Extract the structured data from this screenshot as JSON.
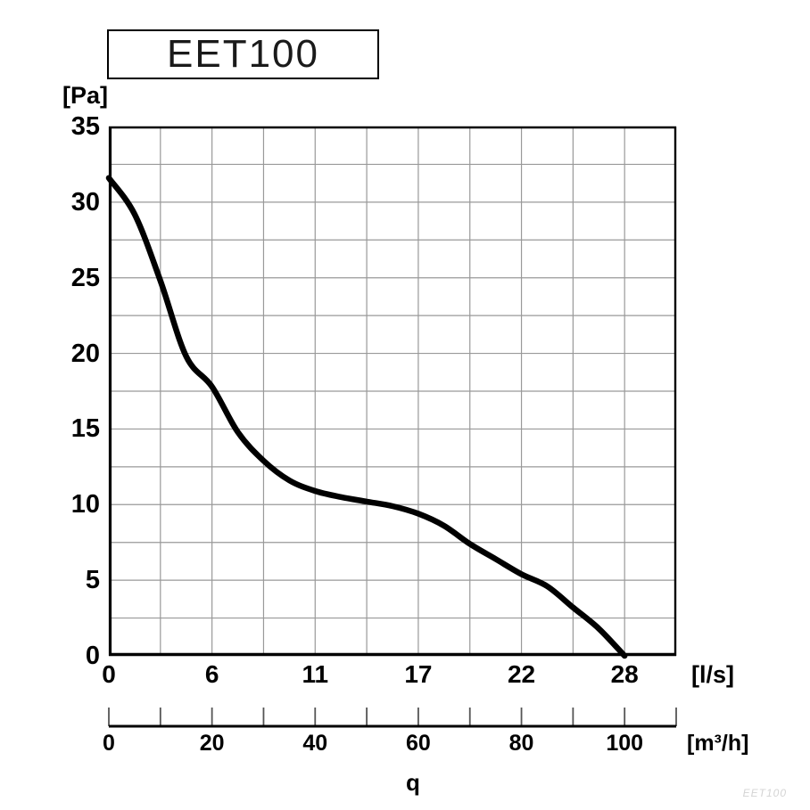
{
  "title": "EET100",
  "watermark": "EET100",
  "chart_data": {
    "type": "line",
    "title": "EET100",
    "grid": true,
    "y_axis": {
      "unit_label": "[Pa]",
      "min": 0,
      "max": 35,
      "tick_step": 5,
      "grid_step": 2.5,
      "ticks": [
        0,
        5,
        10,
        15,
        20,
        25,
        30,
        35
      ]
    },
    "x_axis_ls": {
      "unit_label": "[l/s]",
      "tick_labels": [
        "0",
        "6",
        "11",
        "17",
        "22",
        "28"
      ],
      "tick_positions_m3h": [
        0,
        20,
        40,
        60,
        80,
        100
      ]
    },
    "x_axis_m3h": {
      "unit_label": "[m³/h]",
      "min": 0,
      "max": 110,
      "tick_step": 10,
      "tick_labels": [
        "0",
        "20",
        "40",
        "60",
        "80",
        "100"
      ],
      "label_positions": [
        0,
        20,
        40,
        60,
        80,
        100
      ]
    },
    "flow_symbol": "q",
    "colors": {
      "curve": "#000000",
      "grid": "#999999",
      "axis": "#000000",
      "tick": "#555555"
    },
    "series": [
      {
        "name": "EET100",
        "x_unit": "m3/h",
        "y_unit": "Pa",
        "points": [
          [
            0,
            31.6
          ],
          [
            5,
            29.2
          ],
          [
            10,
            24.8
          ],
          [
            15,
            19.8
          ],
          [
            20,
            17.8
          ],
          [
            25,
            14.8
          ],
          [
            30,
            12.9
          ],
          [
            35,
            11.6
          ],
          [
            40,
            10.9
          ],
          [
            45,
            10.5
          ],
          [
            50,
            10.2
          ],
          [
            55,
            9.9
          ],
          [
            60,
            9.4
          ],
          [
            65,
            8.6
          ],
          [
            70,
            7.4
          ],
          [
            75,
            6.4
          ],
          [
            80,
            5.4
          ],
          [
            85,
            4.6
          ],
          [
            90,
            3.2
          ],
          [
            95,
            1.8
          ],
          [
            100,
            0
          ]
        ]
      }
    ]
  }
}
